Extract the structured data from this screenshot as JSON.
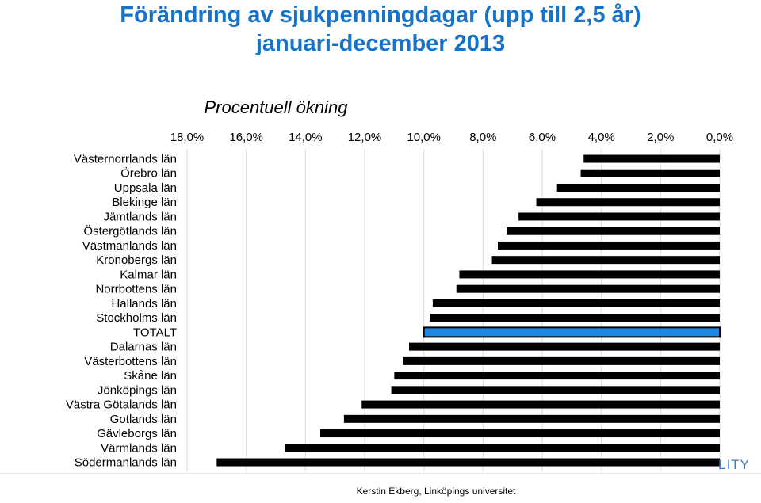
{
  "title_line1": "Förändring av sjukpenningdagar (upp till 2,5 år)",
  "title_line2": "januari-december 2013",
  "footer": "Kerstin Ekberg, Linköpings universitet",
  "brand_fragment": "LITY",
  "colors": {
    "title": "#1673c8",
    "bar": "#000000",
    "highlight": "#1e88e5"
  },
  "chart_data": {
    "type": "bar",
    "orientation": "horizontal",
    "axis_reversed": true,
    "axis_position": "top",
    "grid": true,
    "subtitle": "Procentuell ökning",
    "xlim": [
      0,
      18
    ],
    "ticks": [
      18,
      16,
      14,
      12,
      10,
      8,
      6,
      4,
      2,
      0
    ],
    "tick_labels": [
      "18,0%",
      "16,0%",
      "14,0%",
      "12,0%",
      "10,0%",
      "8,0%",
      "6,0%",
      "4,0%",
      "2,0%",
      "0,0%"
    ],
    "highlight_category": "TOTALT",
    "categories": [
      "Västernorrlands län",
      "Örebro län",
      "Uppsala län",
      "Blekinge län",
      "Jämtlands län",
      "Östergötlands län",
      "Västmanlands län",
      "Kronobergs län",
      "Kalmar län",
      "Norrbottens län",
      "Hallands län",
      "Stockholms län",
      "TOTALT",
      "Dalarnas län",
      "Västerbottens län",
      "Skåne län",
      "Jönköpings län",
      "Västra Götalands län",
      "Gotlands län",
      "Gävleborgs län",
      "Värmlands län",
      "Södermanlands län"
    ],
    "values": [
      4.6,
      4.7,
      5.5,
      6.2,
      6.8,
      7.2,
      7.5,
      7.7,
      8.8,
      8.9,
      9.7,
      9.8,
      10.0,
      10.5,
      10.7,
      11.0,
      11.1,
      12.1,
      12.7,
      13.5,
      14.7,
      17.0
    ]
  }
}
